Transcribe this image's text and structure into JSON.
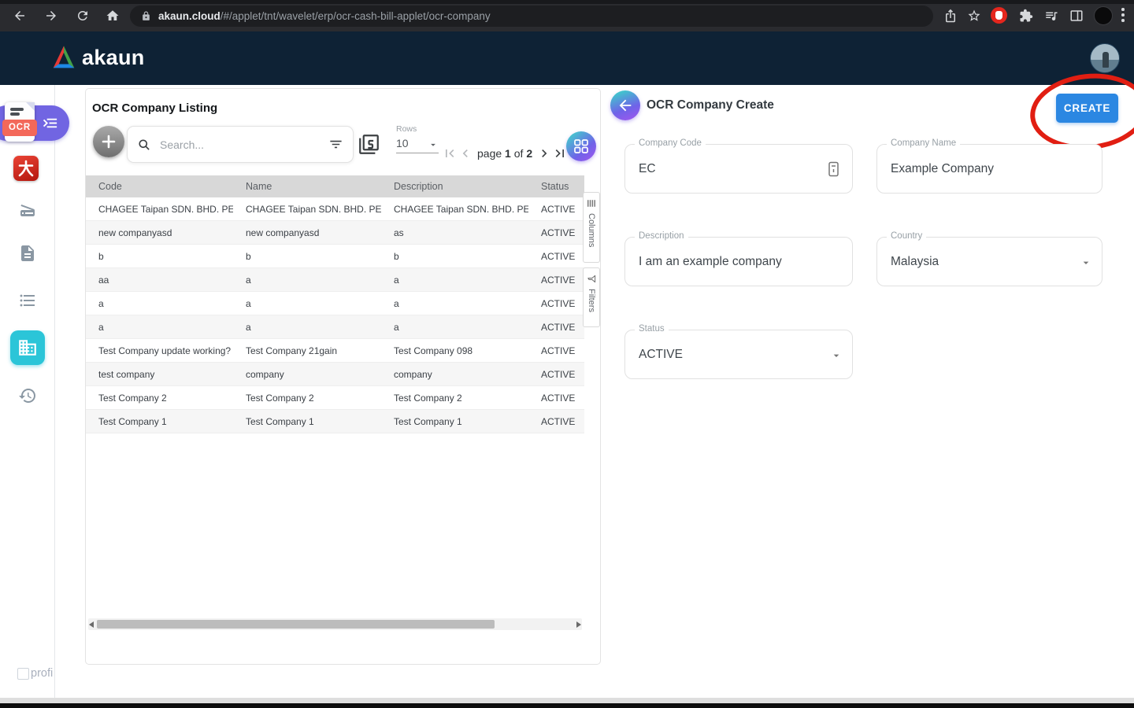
{
  "browser": {
    "url_host": "akaun.cloud",
    "url_path": "/#/applet/tnt/wavelet/erp/ocr-cash-bill-applet/ocr-company"
  },
  "app_header": {
    "brand": "akaun"
  },
  "sidebar": {
    "ocr_badge": "OCR",
    "applet_icon_text": "大",
    "items": [
      {
        "name": "ocr-applet-toggle",
        "icon": "menu-open-icon",
        "active": false
      },
      {
        "name": "applet-logo",
        "icon": "red-da-icon",
        "active": false
      },
      {
        "name": "scanner",
        "icon": "scanner-icon",
        "active": false
      },
      {
        "name": "documents",
        "icon": "document-icon",
        "active": false
      },
      {
        "name": "listing",
        "icon": "list-icon",
        "active": false
      },
      {
        "name": "companies",
        "icon": "building-icon",
        "active": true
      },
      {
        "name": "history",
        "icon": "history-icon",
        "active": false
      }
    ]
  },
  "listing": {
    "title": "OCR Company Listing",
    "search_placeholder": "Search...",
    "rows_label": "Rows",
    "rows_per_page": "10",
    "pagination": {
      "page_word": "page",
      "current": "1",
      "of_word": "of",
      "total": "2"
    },
    "side_tabs": {
      "columns": "Columns",
      "filters": "Filters"
    },
    "table": {
      "columns": [
        "Code",
        "Name",
        "Description",
        "Status"
      ],
      "rows": [
        [
          "CHAGEE Taipan SDN. BHD. PER...",
          "CHAGEE Taipan SDN. BHD. PER...",
          "CHAGEE Taipan SDN. BHD. PER...",
          "ACTIVE"
        ],
        [
          "new companyasd",
          "new companyasd",
          "as",
          "ACTIVE"
        ],
        [
          "b",
          "b",
          "b",
          "ACTIVE"
        ],
        [
          "aa",
          "a",
          "a",
          "ACTIVE"
        ],
        [
          "a",
          "a",
          "a",
          "ACTIVE"
        ],
        [
          "a",
          "a",
          "a",
          "ACTIVE"
        ],
        [
          "Test Company update working?",
          "Test Company 21gain",
          "Test Company 098",
          "ACTIVE"
        ],
        [
          "test company",
          "company",
          "company",
          "ACTIVE"
        ],
        [
          "Test Company 2",
          "Test Company 2",
          "Test Company 2",
          "ACTIVE"
        ],
        [
          "Test Company 1",
          "Test Company 1",
          "Test Company 1",
          "ACTIVE"
        ]
      ]
    }
  },
  "create_panel": {
    "title": "OCR Company Create",
    "create_button_label": "CREATE",
    "fields": {
      "company_code": {
        "label": "Company Code",
        "value": "EC"
      },
      "company_name": {
        "label": "Company Name",
        "value": "Example Company"
      },
      "description": {
        "label": "Description",
        "value": "I am an example company"
      },
      "country": {
        "label": "Country",
        "value": "Malaysia"
      },
      "status": {
        "label": "Status",
        "value": "ACTIVE"
      }
    }
  },
  "footer": {
    "profile_text": "profi"
  },
  "colors": {
    "header_bg": "#0e2235",
    "accent_blue": "#2b87e2",
    "accent_purple": "#7165e2",
    "accent_cyan": "#2bc5d8",
    "annotation_red": "#e11e12",
    "table_header_bg": "#d8d8d8",
    "row_alt_bg": "#f6f6f6",
    "ocr_badge": "#f3685a"
  }
}
